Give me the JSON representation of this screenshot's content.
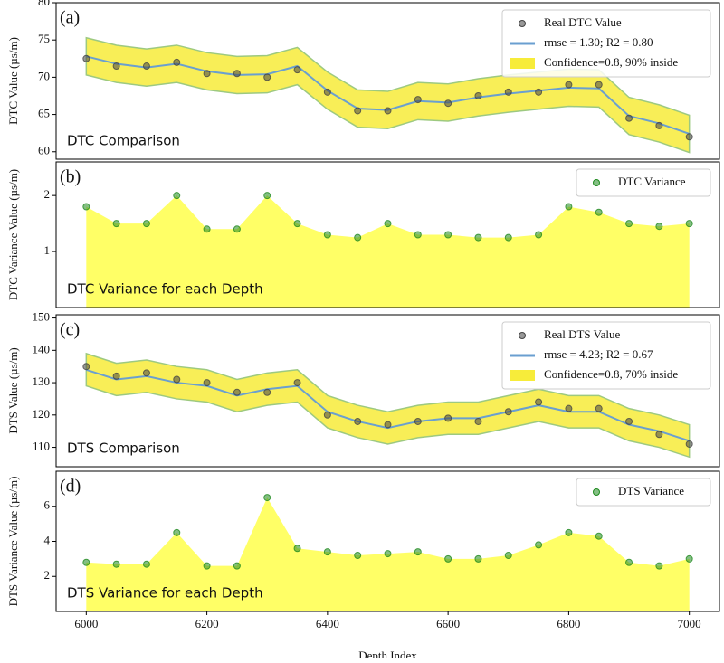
{
  "chart_data": [
    {
      "type": "line",
      "panel_label": "(a)",
      "annotation": "DTC Comparison",
      "ylabel": "DTC Value (µs/m)",
      "xlim": [
        5950,
        7050
      ],
      "ylim": [
        59,
        80
      ],
      "yticks": [
        60,
        65,
        70,
        75,
        80
      ],
      "legend": "upper right",
      "x": [
        6000,
        6050,
        6100,
        6150,
        6200,
        6250,
        6300,
        6350,
        6400,
        6450,
        6500,
        6550,
        6600,
        6650,
        6700,
        6750,
        6800,
        6850,
        6900,
        6950,
        7000
      ],
      "series": [
        {
          "name": "Real DTC Value",
          "type": "scatter",
          "color": "#444444",
          "values": [
            72.5,
            71.5,
            71.5,
            72,
            70.5,
            70.5,
            70,
            71,
            68,
            65.5,
            65.5,
            67,
            66.5,
            67.5,
            68,
            68,
            69,
            69,
            64.5,
            63.5,
            62
          ]
        },
        {
          "name": "rmse = 1.30; R2 = 0.80",
          "type": "line",
          "color": "#6a9fd0",
          "values": [
            72.8,
            71.8,
            71.3,
            71.8,
            70.8,
            70.3,
            70.4,
            71.5,
            68.2,
            65.8,
            65.6,
            66.8,
            66.6,
            67.3,
            67.8,
            68.2,
            68.6,
            68.5,
            64.8,
            63.8,
            62.4
          ]
        },
        {
          "name": "Confidence=0.8, 90% inside",
          "type": "band",
          "color": "#f7ec3a",
          "lower": [
            70.3,
            69.3,
            68.8,
            69.3,
            68.3,
            67.8,
            67.9,
            69,
            65.7,
            63.3,
            63.1,
            64.3,
            64.1,
            64.8,
            65.3,
            65.7,
            66.1,
            66,
            62.3,
            61.3,
            59.9
          ],
          "upper": [
            75.3,
            74.3,
            73.8,
            74.3,
            73.3,
            72.8,
            72.9,
            74,
            70.7,
            68.3,
            68.1,
            69.3,
            69.1,
            69.8,
            70.3,
            70.7,
            71.1,
            71,
            67.3,
            66.3,
            64.9
          ]
        }
      ]
    },
    {
      "type": "area",
      "panel_label": "(b)",
      "annotation": "DTC Variance for each Depth",
      "ylabel": "DTC Variance Value (µs/m)",
      "xlim": [
        5950,
        7050
      ],
      "ylim": [
        0,
        2.6
      ],
      "yticks": [
        1,
        2
      ],
      "legend": "upper right",
      "fill": "#ffff66",
      "x": [
        6000,
        6050,
        6100,
        6150,
        6200,
        6250,
        6300,
        6350,
        6400,
        6450,
        6500,
        6550,
        6600,
        6650,
        6700,
        6750,
        6800,
        6850,
        6900,
        6950,
        7000
      ],
      "series": [
        {
          "name": "DTC Variance",
          "type": "scatter",
          "color": "#1f8a1f",
          "values": [
            1.8,
            1.5,
            1.5,
            2.0,
            1.4,
            1.4,
            2.0,
            1.5,
            1.3,
            1.25,
            1.5,
            1.3,
            1.3,
            1.25,
            1.25,
            1.3,
            1.8,
            1.7,
            1.5,
            1.45,
            1.5
          ]
        }
      ]
    },
    {
      "type": "line",
      "panel_label": "(c)",
      "annotation": "DTS Comparison",
      "ylabel": "DTS Value (µs/m)",
      "xlim": [
        5950,
        7050
      ],
      "ylim": [
        104,
        151
      ],
      "yticks": [
        110,
        120,
        130,
        140,
        150
      ],
      "legend": "upper right",
      "x": [
        6000,
        6050,
        6100,
        6150,
        6200,
        6250,
        6300,
        6350,
        6400,
        6450,
        6500,
        6550,
        6600,
        6650,
        6700,
        6750,
        6800,
        6850,
        6900,
        6950,
        7000
      ],
      "series": [
        {
          "name": "Real DTS Value",
          "type": "scatter",
          "color": "#444444",
          "values": [
            135,
            132,
            133,
            131,
            130,
            127,
            127,
            130,
            120,
            118,
            117,
            118,
            119,
            118,
            121,
            124,
            122,
            122,
            118,
            114,
            111
          ]
        },
        {
          "name": "rmse = 4.23; R2 = 0.67",
          "type": "line",
          "color": "#6a9fd0",
          "values": [
            134,
            131,
            132,
            130,
            129,
            126,
            128,
            129,
            121,
            118,
            116,
            118,
            119,
            119,
            121,
            123,
            121,
            121,
            117,
            115,
            112
          ]
        },
        {
          "name": "Confidence=0.8, 70% inside",
          "type": "band",
          "color": "#f7ec3a",
          "lower": [
            129,
            126,
            127,
            125,
            124,
            121,
            123,
            124,
            116,
            113,
            111,
            113,
            114,
            114,
            116,
            118,
            116,
            116,
            112,
            110,
            107
          ],
          "upper": [
            139,
            136,
            137,
            135,
            134,
            131,
            133,
            134,
            126,
            123,
            121,
            123,
            124,
            124,
            126,
            128,
            126,
            126,
            122,
            120,
            117
          ]
        }
      ]
    },
    {
      "type": "area",
      "panel_label": "(d)",
      "annotation": "DTS Variance for each Depth",
      "ylabel": "DTS Variance Value (µs/m)",
      "xlim": [
        5950,
        7050
      ],
      "ylim": [
        0,
        8
      ],
      "yticks": [
        2,
        4,
        6
      ],
      "legend": "upper right",
      "fill": "#ffff66",
      "xticks": [
        6000,
        6200,
        6400,
        6600,
        6800,
        7000
      ],
      "xlabel": "Depth Index",
      "x": [
        6000,
        6050,
        6100,
        6150,
        6200,
        6250,
        6300,
        6350,
        6400,
        6450,
        6500,
        6550,
        6600,
        6650,
        6700,
        6750,
        6800,
        6850,
        6900,
        6950,
        7000
      ],
      "series": [
        {
          "name": "DTS Variance",
          "type": "scatter",
          "color": "#1f8a1f",
          "values": [
            2.8,
            2.7,
            2.7,
            4.5,
            2.6,
            2.6,
            6.5,
            3.6,
            3.4,
            3.2,
            3.3,
            3.4,
            3.0,
            3.0,
            3.2,
            3.8,
            4.5,
            4.3,
            2.8,
            2.6,
            3.0
          ]
        }
      ]
    }
  ]
}
